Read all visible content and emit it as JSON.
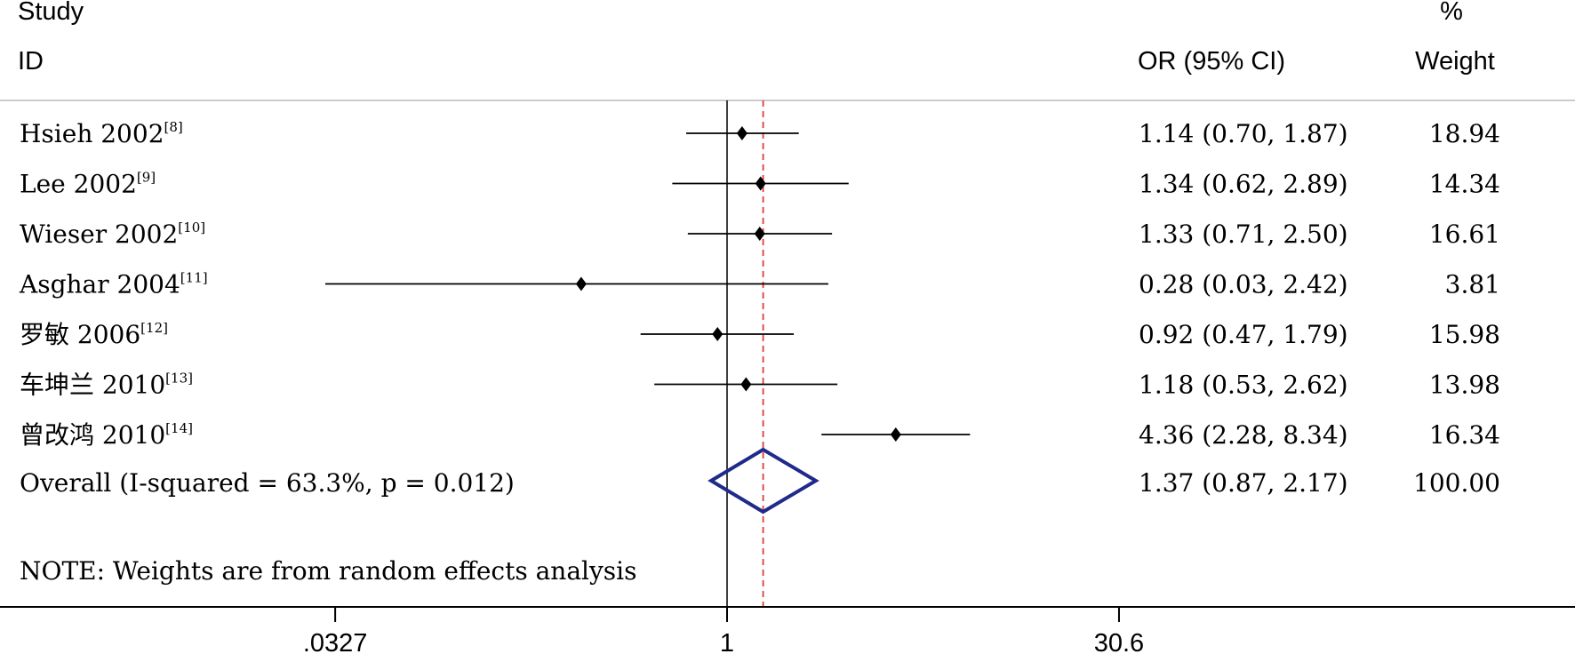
{
  "chart_data": {
    "type": "forest",
    "header": {
      "study_line1": "Study",
      "study_line2": "ID",
      "or_label": "OR (95% CI)",
      "weight_line1": "%",
      "weight_line2": "Weight"
    },
    "x_scale": "log",
    "x_ticks": [
      {
        "value": 0.0327,
        "label": ".0327"
      },
      {
        "value": 1,
        "label": "1"
      },
      {
        "value": 30.6,
        "label": "30.6"
      }
    ],
    "null_line": 1,
    "overall_line": 1.37,
    "studies": [
      {
        "name": "Hsieh 2002",
        "ref": "[8]",
        "or": 1.14,
        "lo": 0.7,
        "hi": 1.87,
        "ci_text": "1.14 (0.70, 1.87)",
        "weight": "18.94"
      },
      {
        "name": "Lee 2002",
        "ref": "[9]",
        "or": 1.34,
        "lo": 0.62,
        "hi": 2.89,
        "ci_text": "1.34 (0.62, 2.89)",
        "weight": "14.34"
      },
      {
        "name": "Wieser 2002",
        "ref": "[10]",
        "or": 1.33,
        "lo": 0.71,
        "hi": 2.5,
        "ci_text": "1.33 (0.71, 2.50)",
        "weight": "16.61"
      },
      {
        "name": "Asghar 2004",
        "ref": "[11]",
        "or": 0.28,
        "lo": 0.03,
        "hi": 2.42,
        "ci_text": "0.28 (0.03, 2.42)",
        "weight": "3.81"
      },
      {
        "name": "罗敏 2006",
        "ref": "[12]",
        "or": 0.92,
        "lo": 0.47,
        "hi": 1.79,
        "ci_text": "0.92 (0.47, 1.79)",
        "weight": "15.98"
      },
      {
        "name": "车坤兰 2010",
        "ref": "[13]",
        "or": 1.18,
        "lo": 0.53,
        "hi": 2.62,
        "ci_text": "1.18 (0.53, 2.62)",
        "weight": "13.98"
      },
      {
        "name": "曾改鸿 2010",
        "ref": "[14]",
        "or": 4.36,
        "lo": 2.28,
        "hi": 8.34,
        "ci_text": "4.36 (2.28, 8.34)",
        "weight": "16.34"
      }
    ],
    "overall": {
      "label": "Overall  (I-squared = 63.3%, p = 0.012)",
      "or": 1.37,
      "lo": 0.87,
      "hi": 2.17,
      "ci_text": "1.37 (0.87, 2.17)",
      "weight": "100.00"
    },
    "note": "NOTE: Weights are from random effects analysis",
    "colors": {
      "marker": "#000000",
      "overall_diamond": "#1f2a8a",
      "overall_line": "#e03c3c",
      "header_rule": "#cccccc"
    }
  }
}
